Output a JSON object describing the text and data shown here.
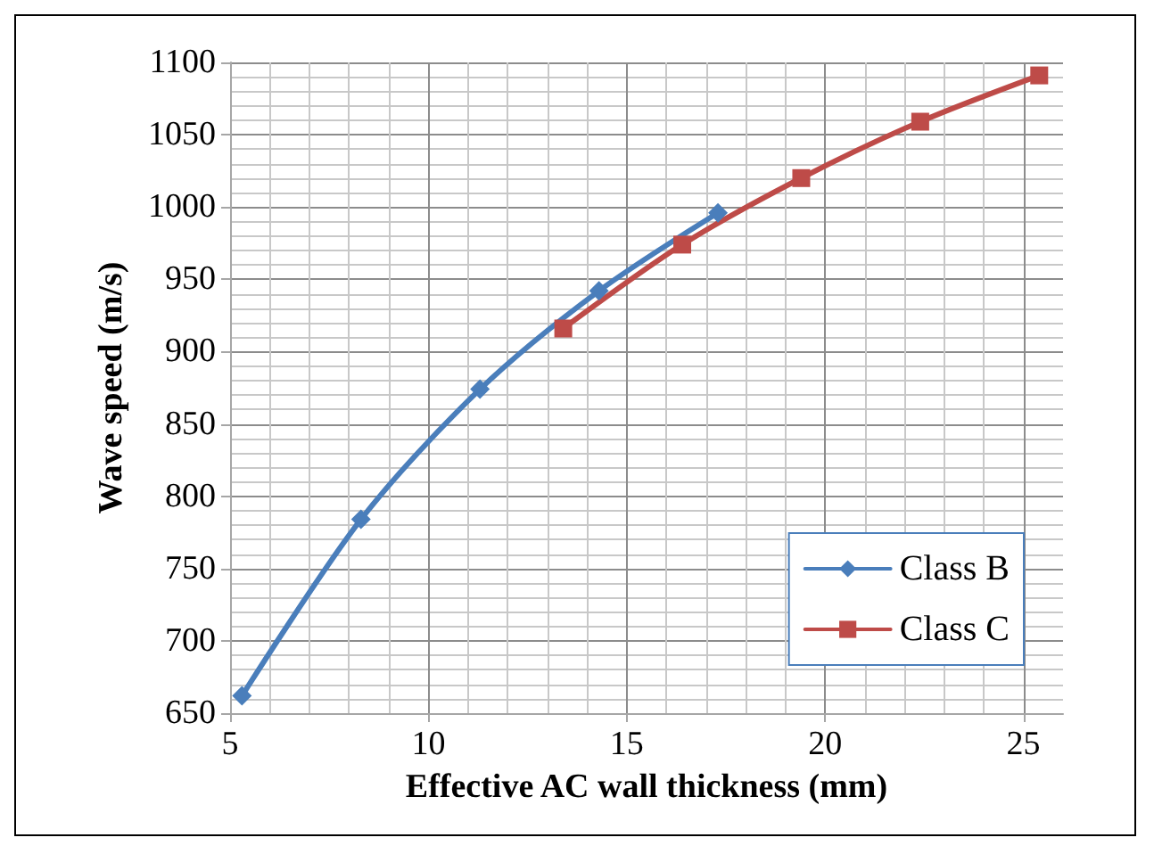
{
  "chart_data": {
    "type": "line",
    "xlabel": "Effective AC wall thickness (mm)",
    "ylabel": "Wave speed (m/s)",
    "xlim": [
      5,
      26
    ],
    "xticks": [
      5,
      10,
      15,
      20,
      25
    ],
    "ylim": [
      650,
      1100
    ],
    "yticks": [
      650,
      700,
      750,
      800,
      850,
      900,
      950,
      1000,
      1050,
      1100
    ],
    "grid": true,
    "legend": "bottom right",
    "line_style": "solid",
    "series": [
      {
        "name": "Class B",
        "color": "#4a7ebb",
        "marker": "diamond",
        "x": [
          5.3,
          8.3,
          11.3,
          14.3,
          17.3
        ],
        "values": [
          662,
          784,
          874,
          942,
          996
        ]
      },
      {
        "name": "Class C",
        "color": "#be4b48",
        "marker": "square",
        "x": [
          13.4,
          16.4,
          19.4,
          22.4,
          25.4
        ],
        "values": [
          916,
          974,
          1020,
          1059,
          1091
        ]
      }
    ]
  }
}
